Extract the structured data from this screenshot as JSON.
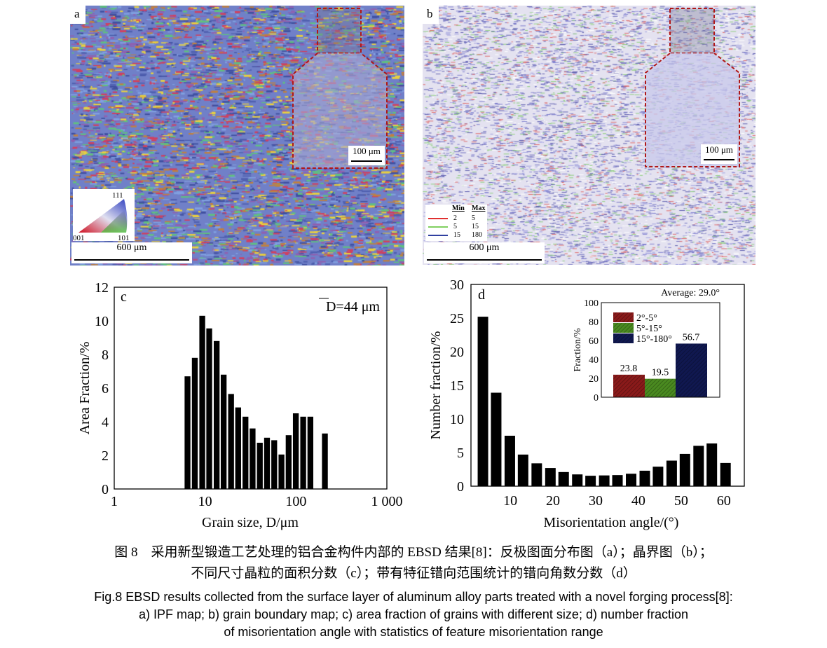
{
  "panels": {
    "a": {
      "label": "a",
      "scale_bar": "600 μm",
      "inset_scale_bar": "100 μm",
      "ipf_key": {
        "top": "111",
        "left": "001",
        "right": "101"
      }
    },
    "b": {
      "label": "b",
      "scale_bar": "600 μm",
      "inset_scale_bar": "100 μm",
      "legend": {
        "headers": [
          "Min",
          "Max"
        ],
        "rows": [
          {
            "min": "2",
            "max": "5",
            "color": "#e03030"
          },
          {
            "min": "5",
            "max": "15",
            "color": "#80d060"
          },
          {
            "min": "15",
            "max": "180",
            "color": "#3040a0"
          }
        ]
      }
    },
    "inset_frame_color": "#b01818"
  },
  "chart_data": [
    {
      "type": "bar",
      "panel_label": "c",
      "annotation": "D=44 μm",
      "annotation_overline": "D",
      "xlabel": "Grain size, D/μm",
      "ylabel": "Area Fraction/%",
      "xscale": "log",
      "xlim": [
        1,
        1000
      ],
      "ylim": [
        0,
        12
      ],
      "xticks": [
        "1",
        "10",
        "100",
        "1 000"
      ],
      "yticks": [
        "0",
        "2",
        "4",
        "6",
        "8",
        "10",
        "12"
      ],
      "x": [
        6.4,
        7.7,
        9.3,
        11.1,
        13.4,
        16,
        19.3,
        23.1,
        27.8,
        33.3,
        40,
        48,
        57.6,
        69.2,
        83,
        99.6,
        120,
        144,
        208
      ],
      "values": [
        6.7,
        7.8,
        10.3,
        9.55,
        8.8,
        6.8,
        5.65,
        4.85,
        4.3,
        3.6,
        2.75,
        3.05,
        2.9,
        2.05,
        3.2,
        4.5,
        4.3,
        4.3,
        3.3
      ],
      "bar_color": "#000000",
      "grid": false
    },
    {
      "type": "bar",
      "panel_label": "d",
      "xlabel": "Misorientation angle/(°)",
      "ylabel": "Number fraction/%",
      "xlim": [
        0.8,
        64.8
      ],
      "ylim": [
        0,
        30
      ],
      "xticks": [
        "10",
        "20",
        "30",
        "40",
        "50",
        "60"
      ],
      "yticks": [
        "0",
        "5",
        "10",
        "15",
        "20",
        "25",
        "30"
      ],
      "x": [
        3.6,
        6.7,
        9.9,
        13,
        16.2,
        19.4,
        22.5,
        25.7,
        28.8,
        32,
        35.1,
        38.3,
        41.5,
        44.6,
        47.8,
        50.9,
        54.1,
        57.2,
        60.4
      ],
      "values": [
        25.2,
        13.9,
        7.5,
        4.7,
        3.4,
        2.7,
        2.1,
        1.75,
        1.55,
        1.6,
        1.65,
        1.85,
        2.3,
        2.9,
        3.8,
        4.8,
        6.0,
        6.35,
        3.45
      ],
      "bar_color": "#000000",
      "grid": false,
      "inset": {
        "type": "bar",
        "title": "Average: 29.0°",
        "ylabel": "Fraction/%",
        "ylim": [
          0,
          100
        ],
        "yticks": [
          "0",
          "20",
          "40",
          "60",
          "80",
          "100"
        ],
        "categories": [
          "2°-5°",
          "5°-15°",
          "15°-180°"
        ],
        "values": [
          23.8,
          19.5,
          56.7
        ],
        "value_labels": [
          "23.8",
          "19.5",
          "56.7"
        ],
        "colors": [
          "#8a1a1a",
          "#4a8a20",
          "#101850"
        ],
        "legend": "top-left"
      }
    }
  ],
  "caption": {
    "cn_line1": "图 8　采用新型锻造工艺处理的铝合金构件内部的 EBSD 结果[8]：反极图面分布图（a）；晶界图（b）；",
    "cn_line2": "不同尺寸晶粒的面积分数（c）；带有特征错向范围统计的错向角数分数（d）",
    "en_line1": "Fig.8 EBSD results collected from the surface layer of aluminum alloy parts treated with a novel forging process[8]:",
    "en_line2": "a) IPF map; b) grain boundary map; c) area fraction of grains with different size; d) number fraction",
    "en_line3": "of misorientation angle with statistics of feature misorientation range"
  }
}
